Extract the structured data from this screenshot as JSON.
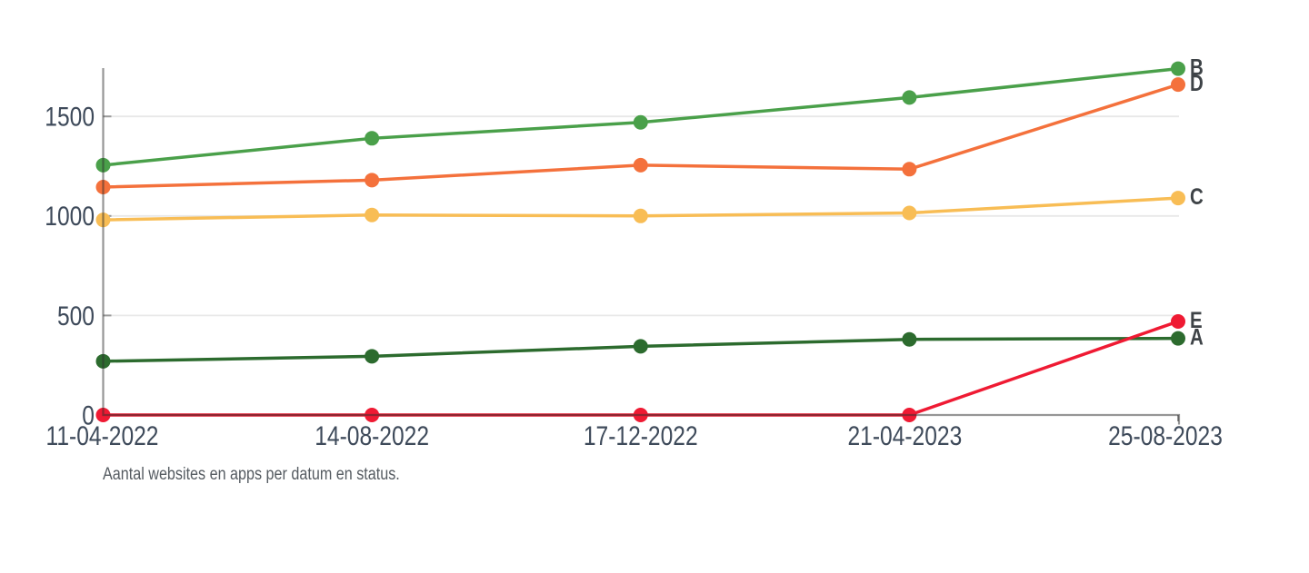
{
  "chart_data": {
    "type": "line",
    "title": "",
    "note": "Aantal websites en apps per datum en status.",
    "categories": [
      "11-04-2022",
      "14-08-2022",
      "17-12-2022",
      "21-04-2023",
      "25-08-2023"
    ],
    "series": [
      {
        "name": "A",
        "color": "#2c6b2e",
        "values": [
          270,
          295,
          345,
          380,
          385
        ]
      },
      {
        "name": "B",
        "color": "#4aa04a",
        "values": [
          1255,
          1390,
          1470,
          1595,
          1740
        ]
      },
      {
        "name": "C",
        "color": "#f8bd55",
        "values": [
          980,
          1005,
          1000,
          1015,
          1090
        ]
      },
      {
        "name": "D",
        "color": "#f4713c",
        "values": [
          1145,
          1180,
          1255,
          1235,
          1660
        ]
      },
      {
        "name": "E",
        "color": "#ef1a33",
        "values": [
          0,
          0,
          0,
          0,
          470
        ]
      }
    ],
    "y_ticks": [
      0,
      500,
      1000,
      1500
    ],
    "ylim": [
      0,
      1750
    ],
    "grid": "horizontal",
    "legend_position": "right-end-labels",
    "axis_color": "rgba(45,45,45,0.5)",
    "tick_color": "#9a9a9a",
    "grid_color": "#e8e8e8",
    "label_color": "#3e4a5a",
    "series_label_color": "#3e4347",
    "note_color": "#555b61"
  }
}
